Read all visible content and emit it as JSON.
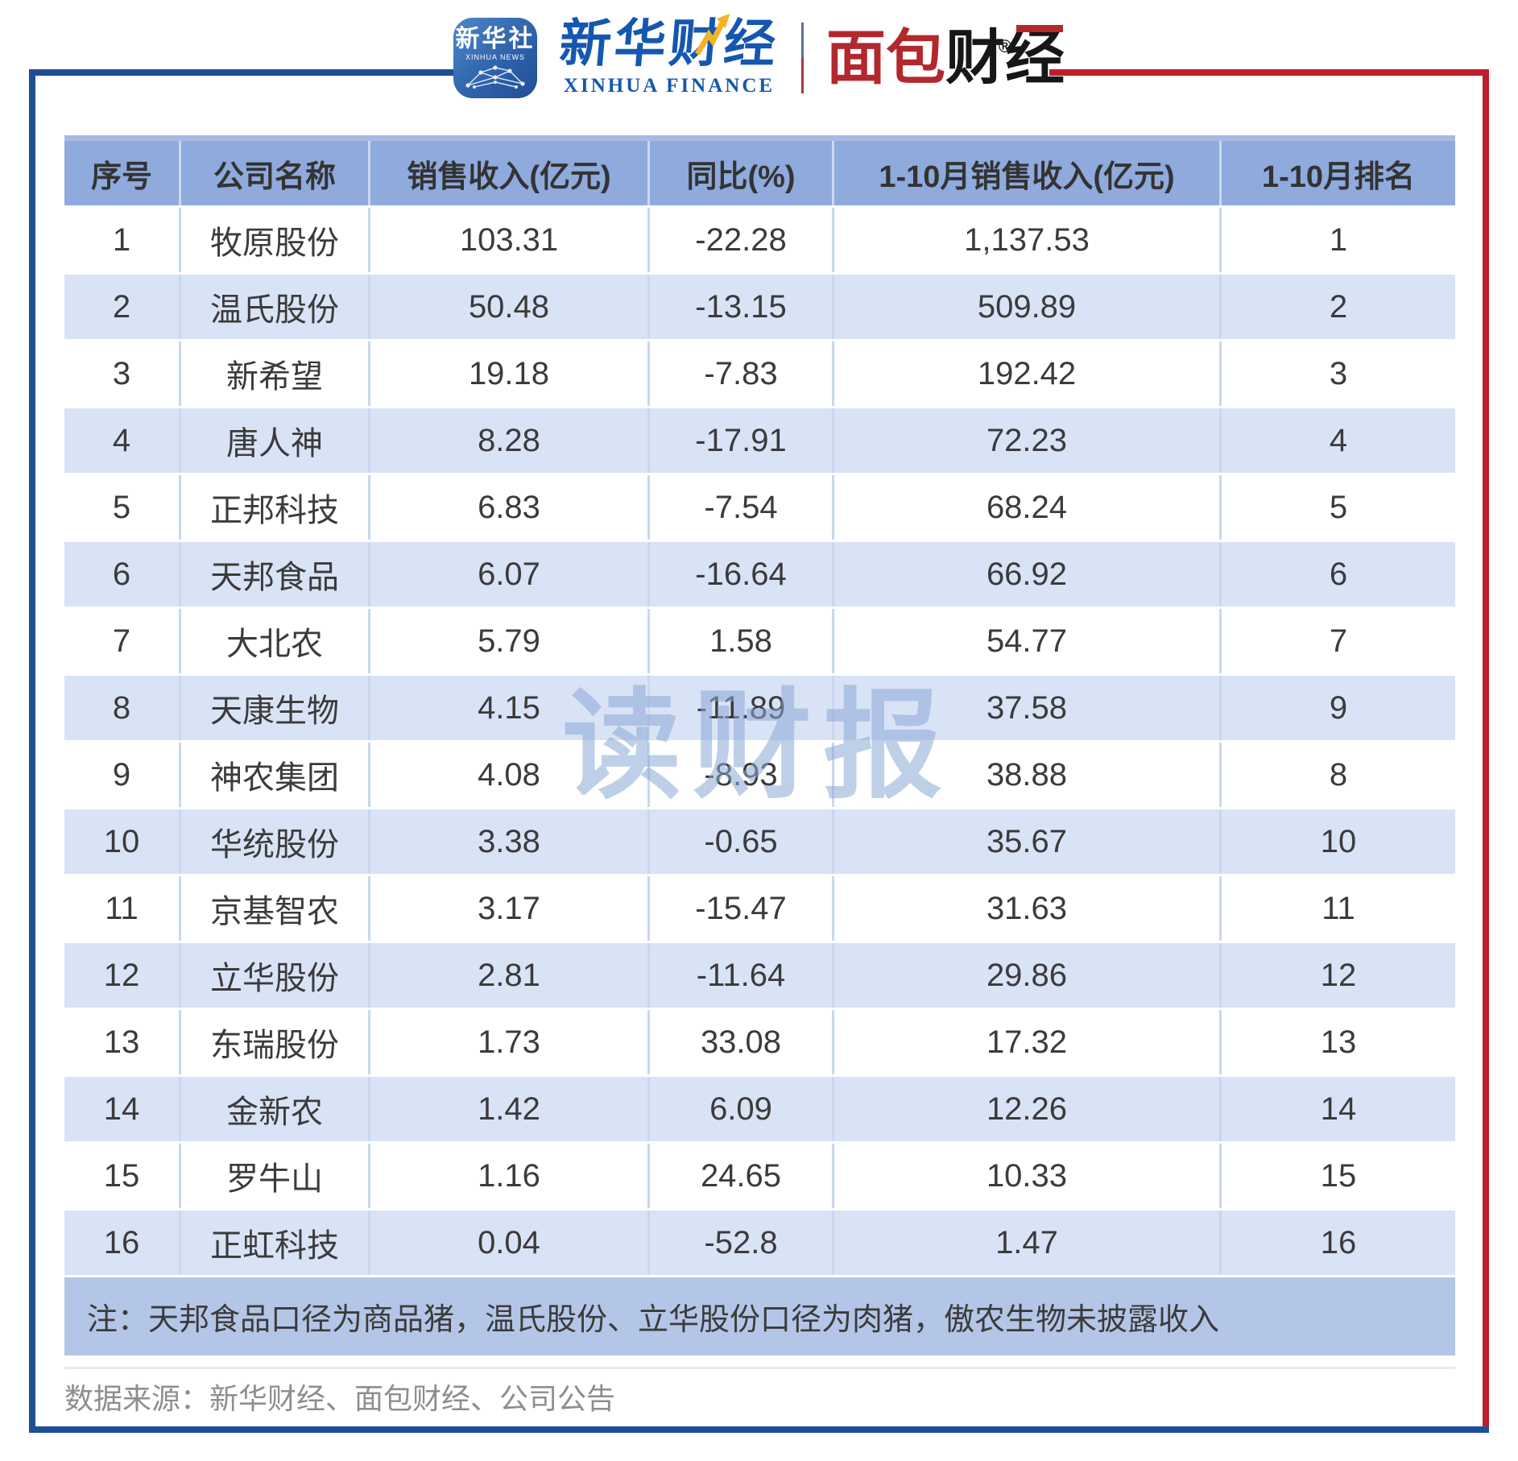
{
  "header": {
    "xinhua_news": {
      "cn": "新华社",
      "en": "XINHUA NEWS"
    },
    "xinhua_finance": {
      "cn": "新华财经",
      "en": "XINHUA FINANCE"
    },
    "bread_finance": {
      "cn_red": "面包",
      "cn_black": "财经",
      "reg": "®"
    }
  },
  "watermark": "读财报",
  "chart_data": {
    "type": "table",
    "columns": [
      "序号",
      "公司名称",
      "销售收入(亿元)",
      "同比(%)",
      "1-10月销售收入(亿元)",
      "1-10月排名"
    ],
    "rows": [
      [
        "1",
        "牧原股份",
        "103.31",
        "-22.28",
        "1,137.53",
        "1"
      ],
      [
        "2",
        "温氏股份",
        "50.48",
        "-13.15",
        "509.89",
        "2"
      ],
      [
        "3",
        "新希望",
        "19.18",
        "-7.83",
        "192.42",
        "3"
      ],
      [
        "4",
        "唐人神",
        "8.28",
        "-17.91",
        "72.23",
        "4"
      ],
      [
        "5",
        "正邦科技",
        "6.83",
        "-7.54",
        "68.24",
        "5"
      ],
      [
        "6",
        "天邦食品",
        "6.07",
        "-16.64",
        "66.92",
        "6"
      ],
      [
        "7",
        "大北农",
        "5.79",
        "1.58",
        "54.77",
        "7"
      ],
      [
        "8",
        "天康生物",
        "4.15",
        "-11.89",
        "37.58",
        "9"
      ],
      [
        "9",
        "神农集团",
        "4.08",
        "-8.93",
        "38.88",
        "8"
      ],
      [
        "10",
        "华统股份",
        "3.38",
        "-0.65",
        "35.67",
        "10"
      ],
      [
        "11",
        "京基智农",
        "3.17",
        "-15.47",
        "31.63",
        "11"
      ],
      [
        "12",
        "立华股份",
        "2.81",
        "-11.64",
        "29.86",
        "12"
      ],
      [
        "13",
        "东瑞股份",
        "1.73",
        "33.08",
        "17.32",
        "13"
      ],
      [
        "14",
        "金新农",
        "1.42",
        "6.09",
        "12.26",
        "14"
      ],
      [
        "15",
        "罗牛山",
        "1.16",
        "24.65",
        "10.33",
        "15"
      ],
      [
        "16",
        "正虹科技",
        "0.04",
        "-52.8",
        "1.47",
        "16"
      ]
    ],
    "note": "注：天邦食品口径为商品猪，温氏股份、立华股份口径为肉猪，傲农生物未披露收入"
  },
  "source": "数据来源：新华财经、面包财经、公司公告",
  "colors": {
    "frame_blue": "#1f4e96",
    "frame_red": "#bf1d2b",
    "header_fill": "#8faadc",
    "row_alt_fill": "#d9e3f6",
    "note_fill": "#b4c6e7",
    "cell_divider": "#c9d8ee",
    "watermark_blue": "#89a8d6",
    "logo_red": "#b3282c",
    "logo_blue": "#1557b0",
    "bolt_yellow": "#f2b32a"
  }
}
